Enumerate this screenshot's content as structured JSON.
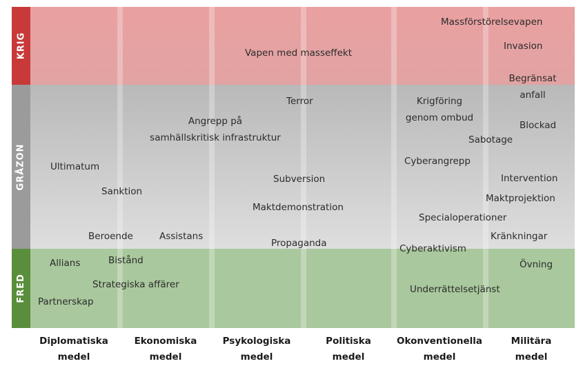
{
  "rows": {
    "krig": "KRIG",
    "grazon": "GRÅZON",
    "fred": "FRED"
  },
  "columns": [
    {
      "line1": "Diplomatiska",
      "line2": "medel"
    },
    {
      "line1": "Ekonomiska",
      "line2": "medel"
    },
    {
      "line1": "Psykologiska",
      "line2": "medel"
    },
    {
      "line1": "Politiska",
      "line2": "medel"
    },
    {
      "line1": "Okonventionella",
      "line2": "medel"
    },
    {
      "line1": "Militära",
      "line2": "medel"
    }
  ],
  "items": {
    "massforstorelsevapen": "Massförstörelsevapen",
    "invasion": "Invasion",
    "vapen_med_masseffekt": "Vapen med masseffekt",
    "begransat_anfall_1": "Begränsat",
    "begransat_anfall_2": "anfall",
    "terror": "Terror",
    "krigforing_1": "Krigföring",
    "krigforing_2": "genom ombud",
    "angrepp_1": "Angrepp på",
    "angrepp_2": "samhällskritisk infrastruktur",
    "blockad": "Blockad",
    "sabotage": "Sabotage",
    "ultimatum": "Ultimatum",
    "cyberangrepp": "Cyberangrepp",
    "subversion": "Subversion",
    "intervention": "Intervention",
    "sanktion": "Sanktion",
    "maktprojektion": "Maktprojektion",
    "maktdemonstration": "Maktdemonstration",
    "specialoperationer": "Specialoperationer",
    "beroende": "Beroende",
    "assistans": "Assistans",
    "krankningar": "Kränkningar",
    "propaganda": "Propaganda",
    "cyberaktivism": "Cyberaktivism",
    "allians": "Allians",
    "bistand": "Bistånd",
    "ovning": "Övning",
    "strategiska_affarer": "Strategiska affärer",
    "underrattelsetjanst": "Underrättelsetjänst",
    "partnerskap": "Partnerskap"
  },
  "colors": {
    "krig_band": "#e6a3a3",
    "krig_side": "#c8393a",
    "grazon_band": "#c8c8c8",
    "grazon_side": "#9b9b9b",
    "fred_band": "#a9c89d",
    "fred_side": "#5a8e3c"
  }
}
